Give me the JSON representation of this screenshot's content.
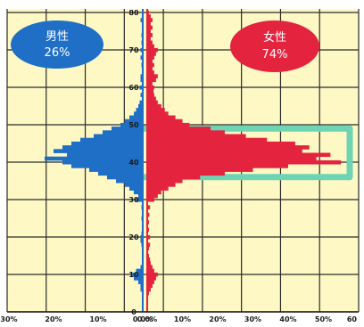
{
  "chart_data": {
    "type": "bar",
    "orientation": "horizontal-pyramid",
    "title": "",
    "xlabel": "",
    "ylabel": "",
    "y_axis_ticks": [
      "0",
      "10",
      "20",
      "30",
      "40",
      "50",
      "60",
      "70",
      "80"
    ],
    "x_ticks_left": [
      "30%",
      "20%",
      "10%",
      "0.0%"
    ],
    "x_ticks_right": [
      "0.0%",
      "10%",
      "20%",
      "30%",
      "40%",
      "50%",
      "60"
    ],
    "ylim": [
      0,
      80
    ],
    "xlim_left": [
      0,
      30
    ],
    "xlim_right": [
      0,
      60
    ],
    "grid": true,
    "highlight_band": {
      "from_age": 36,
      "to_age": 49,
      "color": "#6fd4b4"
    },
    "series": [
      {
        "name": "男性",
        "percent_label": "26%",
        "color": "#1f6fc6",
        "side": "left",
        "points": [
          [
            6,
            0.5
          ],
          [
            7,
            0.5
          ],
          [
            8,
            1
          ],
          [
            9,
            2
          ],
          [
            10,
            2.5
          ],
          [
            11,
            1.5
          ],
          [
            12,
            0.5
          ],
          [
            18,
            0.3
          ],
          [
            19,
            0.5
          ],
          [
            20,
            0.5
          ],
          [
            21,
            0.3
          ],
          [
            25,
            0.3
          ],
          [
            28,
            0.3
          ],
          [
            30,
            1.5
          ],
          [
            31,
            1
          ],
          [
            32,
            2
          ],
          [
            33,
            3
          ],
          [
            34,
            4
          ],
          [
            35,
            6
          ],
          [
            36,
            8
          ],
          [
            37,
            10
          ],
          [
            38,
            12
          ],
          [
            39,
            16
          ],
          [
            40,
            18
          ],
          [
            41,
            22
          ],
          [
            42,
            17
          ],
          [
            43,
            20
          ],
          [
            44,
            18
          ],
          [
            45,
            16
          ],
          [
            46,
            14
          ],
          [
            47,
            11
          ],
          [
            48,
            9
          ],
          [
            49,
            7
          ],
          [
            50,
            5
          ],
          [
            51,
            4
          ],
          [
            52,
            3
          ],
          [
            53,
            2
          ],
          [
            54,
            1.5
          ],
          [
            55,
            1
          ],
          [
            56,
            0.7
          ],
          [
            58,
            0.5
          ],
          [
            60,
            0.7
          ],
          [
            62,
            0.5
          ],
          [
            63,
            0.5
          ],
          [
            66,
            0.3
          ],
          [
            68,
            0.5
          ],
          [
            70,
            0.5
          ],
          [
            72,
            0.3
          ],
          [
            74,
            0.3
          ],
          [
            78,
            0.5
          ]
        ]
      },
      {
        "name": "女性",
        "percent_label": "74%",
        "color": "#e4243f",
        "side": "right",
        "points": [
          [
            5,
            0.5
          ],
          [
            6,
            1
          ],
          [
            7,
            1.5
          ],
          [
            8,
            2
          ],
          [
            9,
            2.5
          ],
          [
            10,
            3
          ],
          [
            11,
            2
          ],
          [
            12,
            1.5
          ],
          [
            13,
            1
          ],
          [
            14,
            0.8
          ],
          [
            15,
            0.5
          ],
          [
            17,
            0.5
          ],
          [
            18,
            0.8
          ],
          [
            20,
            0.8
          ],
          [
            22,
            0.5
          ],
          [
            24,
            0.5
          ],
          [
            26,
            0.6
          ],
          [
            28,
            0.8
          ],
          [
            30,
            2
          ],
          [
            31,
            3
          ],
          [
            32,
            4
          ],
          [
            33,
            6
          ],
          [
            34,
            8
          ],
          [
            35,
            10
          ],
          [
            36,
            15
          ],
          [
            37,
            22
          ],
          [
            38,
            30
          ],
          [
            39,
            40
          ],
          [
            40,
            55
          ],
          [
            41,
            48
          ],
          [
            42,
            52
          ],
          [
            43,
            44
          ],
          [
            44,
            46
          ],
          [
            45,
            42
          ],
          [
            46,
            34
          ],
          [
            47,
            28
          ],
          [
            48,
            22
          ],
          [
            49,
            18
          ],
          [
            50,
            12
          ],
          [
            51,
            10
          ],
          [
            52,
            8
          ],
          [
            53,
            6
          ],
          [
            54,
            5
          ],
          [
            55,
            4
          ],
          [
            56,
            3
          ],
          [
            57,
            2.5
          ],
          [
            58,
            2
          ],
          [
            59,
            1.8
          ],
          [
            60,
            2
          ],
          [
            61,
            1.5
          ],
          [
            62,
            2.5
          ],
          [
            63,
            3
          ],
          [
            64,
            2
          ],
          [
            65,
            1.5
          ],
          [
            66,
            2
          ],
          [
            67,
            1.5
          ],
          [
            68,
            2
          ],
          [
            69,
            2.5
          ],
          [
            70,
            3
          ],
          [
            71,
            2
          ],
          [
            72,
            1.5
          ],
          [
            73,
            1
          ],
          [
            74,
            1.5
          ],
          [
            75,
            1
          ],
          [
            76,
            1.5
          ],
          [
            77,
            1
          ],
          [
            78,
            1.5
          ],
          [
            79,
            1
          ],
          [
            80,
            0.5
          ]
        ]
      }
    ]
  }
}
